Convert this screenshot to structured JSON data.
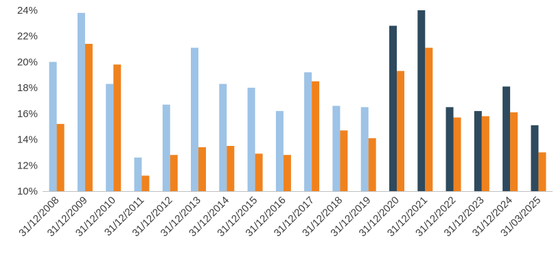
{
  "chart_data": {
    "type": "bar",
    "categories": [
      "31/12/2008",
      "31/12/2009",
      "31/12/2010",
      "31/12/2011",
      "31/12/2012",
      "31/12/2013",
      "31/12/2014",
      "31/12/2015",
      "31/12/2016",
      "31/12/2017",
      "31/12/2018",
      "31/12/2019",
      "31/12/2020",
      "31/12/2021",
      "31/12/2022",
      "31/12/2023",
      "31/12/2024",
      "31/03/2025"
    ],
    "series": [
      {
        "values": [
          20.0,
          23.8,
          18.3,
          12.6,
          16.7,
          21.1,
          18.3,
          18.0,
          16.2,
          19.2,
          16.6,
          16.5,
          22.8,
          24.0,
          16.5,
          16.2,
          18.1,
          15.1
        ],
        "colors": [
          "#9dc3e6",
          "#9dc3e6",
          "#9dc3e6",
          "#9dc3e6",
          "#9dc3e6",
          "#9dc3e6",
          "#9dc3e6",
          "#9dc3e6",
          "#9dc3e6",
          "#9dc3e6",
          "#9dc3e6",
          "#9dc3e6",
          "#2e4a5e",
          "#2e4a5e",
          "#2e4a5e",
          "#2e4a5e",
          "#2e4a5e",
          "#2e4a5e"
        ]
      },
      {
        "values": [
          15.2,
          21.4,
          19.8,
          11.2,
          12.8,
          13.4,
          13.5,
          12.9,
          12.8,
          18.5,
          14.7,
          14.1,
          19.3,
          21.1,
          15.7,
          15.8,
          16.1,
          13.0
        ],
        "colors": [
          "#f0821e",
          "#f0821e",
          "#f0821e",
          "#f0821e",
          "#f0821e",
          "#f0821e",
          "#f0821e",
          "#f0821e",
          "#f0821e",
          "#f0821e",
          "#f0821e",
          "#f0821e",
          "#f0821e",
          "#f0821e",
          "#f0821e",
          "#f0821e",
          "#f0821e",
          "#f0821e"
        ]
      }
    ],
    "ylim": [
      10,
      24
    ],
    "yticks": [
      10,
      12,
      14,
      16,
      18,
      20,
      22,
      24
    ],
    "ytick_labels": [
      "10%",
      "12%",
      "14%",
      "16%",
      "18%",
      "20%",
      "22%",
      "24%"
    ],
    "grid": false,
    "legend": "none"
  }
}
